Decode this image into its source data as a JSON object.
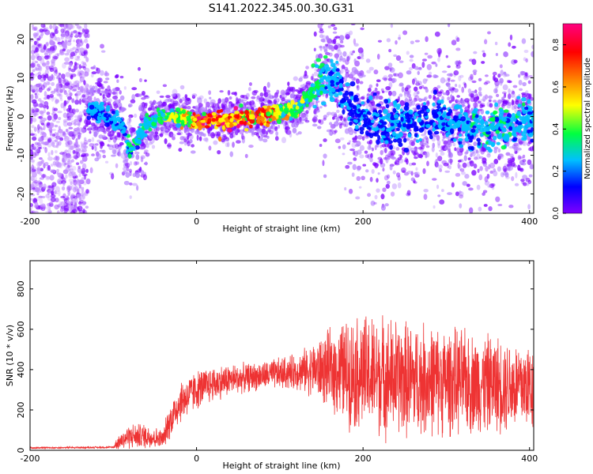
{
  "title": "S141.2022.345.00.30.G31",
  "chart_data": [
    {
      "type": "scatter",
      "subtype": "spectrogram",
      "xlabel": "Height of straight line (km)",
      "ylabel": "Frequency (Hz)",
      "xlim": [
        -200,
        405
      ],
      "ylim": [
        -25,
        24
      ],
      "xticks": [
        -200,
        0,
        200,
        400
      ],
      "yticks": [
        20,
        10,
        0,
        -10,
        -20
      ],
      "grid": false,
      "colorbar": {
        "label": "Normalized spectral amplitude",
        "range": [
          0.0,
          0.9
        ],
        "ticks": [
          "0.0",
          "0.2",
          "0.4",
          "0.6",
          "0.8"
        ],
        "colormap": "hsv-like (purple→blue→cyan→green→yellow→orange→red→magenta)",
        "colors": [
          "#8000ff",
          "#0000ff",
          "#00c0ff",
          "#00ff40",
          "#ffff00",
          "#ff8000",
          "#ff0000",
          "#ff0080"
        ]
      },
      "ridge": {
        "x": [
          -130,
          -110,
          -90,
          -80,
          -60,
          -40,
          -20,
          0,
          20,
          40,
          60,
          80,
          100,
          120,
          130,
          140,
          150,
          160,
          170,
          180,
          190,
          200,
          220,
          240,
          260,
          280,
          300,
          320,
          340,
          360,
          380,
          400,
          405
        ],
        "y": [
          2,
          0,
          -2,
          -9,
          -2,
          0,
          0,
          -1,
          -1,
          -1,
          0,
          0,
          1,
          2,
          4,
          7,
          9,
          10,
          8,
          4,
          1,
          0,
          -2,
          -2,
          -1,
          -1,
          -1,
          -2,
          -3,
          -3,
          -2,
          -1,
          -1
        ],
        "amplitude": [
          0.3,
          0.3,
          0.25,
          0.35,
          0.35,
          0.45,
          0.55,
          0.85,
          0.85,
          0.85,
          0.8,
          0.8,
          0.6,
          0.5,
          0.45,
          0.4,
          0.35,
          0.3,
          0.25,
          0.22,
          0.2,
          0.2,
          0.22,
          0.25,
          0.2,
          0.2,
          0.25,
          0.3,
          0.35,
          0.35,
          0.32,
          0.3,
          0.3
        ]
      },
      "noise_region": {
        "x": [
          -200,
          -130
        ],
        "y": [
          -25,
          24
        ],
        "amplitude": 0.1
      }
    },
    {
      "type": "line",
      "xlabel": "Height of straight line (km)",
      "ylabel": "SNR (10 * v/v)",
      "xlim": [
        -200,
        405
      ],
      "ylim": [
        0,
        940
      ],
      "xticks": [
        -200,
        0,
        200,
        400
      ],
      "yticks": [
        0,
        200,
        400,
        600,
        800
      ],
      "color": "#ee3333",
      "grid": false,
      "envelope": {
        "x": [
          -200,
          -100,
          -95,
          -80,
          -60,
          -40,
          -35,
          -20,
          0,
          20,
          40,
          60,
          80,
          100,
          120,
          140,
          160,
          180,
          200,
          220,
          240,
          260,
          280,
          300,
          320,
          340,
          360,
          380,
          400,
          405
        ],
        "mean": [
          12,
          15,
          40,
          70,
          70,
          55,
          120,
          240,
          300,
          330,
          350,
          360,
          370,
          380,
          390,
          400,
          400,
          390,
          380,
          370,
          360,
          350,
          350,
          340,
          340,
          330,
          330,
          320,
          320,
          320
        ],
        "spread": [
          5,
          5,
          40,
          70,
          70,
          50,
          90,
          120,
          110,
          100,
          90,
          80,
          80,
          90,
          100,
          150,
          220,
          300,
          330,
          340,
          330,
          320,
          310,
          300,
          290,
          280,
          270,
          260,
          250,
          250
        ]
      }
    }
  ]
}
